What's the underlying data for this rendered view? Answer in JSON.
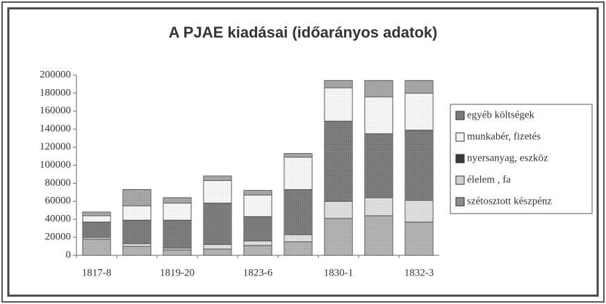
{
  "chart_data": {
    "type": "stacked_bar",
    "title": "A PJAE kiadásai (időarányos adatok)",
    "categories": [
      "1817-8",
      null,
      "1819-20",
      null,
      "1823-6",
      null,
      "1830-1",
      null,
      "1832-3"
    ],
    "series": [
      {
        "name": "szétosztott készpénz",
        "color": "#8c8c8c",
        "values": [
          18000,
          10000,
          6000,
          7000,
          11000,
          15000,
          41000,
          44000,
          37000
        ]
      },
      {
        "name": "élelem , fa",
        "color": "#cfcfcf",
        "values": [
          2000,
          3000,
          2000,
          5000,
          5000,
          8000,
          19000,
          20000,
          24000
        ]
      },
      {
        "name": "nyersanyag, eszköz",
        "color": "#3a3a3a",
        "values": [
          17000,
          26000,
          31000,
          46000,
          27000,
          50000,
          89000,
          71000,
          78000
        ]
      },
      {
        "name": "munkabér, fizetés",
        "color": "#f2f2f2",
        "values": [
          7000,
          16000,
          19000,
          25000,
          24000,
          36000,
          37000,
          41000,
          41000
        ]
      },
      {
        "name": "egyéb költségek",
        "color": "#7a7a7a",
        "values": [
          4000,
          18000,
          6000,
          5000,
          5000,
          4000,
          8000,
          18000,
          14000
        ]
      }
    ],
    "ylim": [
      0,
      200000
    ],
    "yticks": [
      0,
      20000,
      40000,
      60000,
      80000,
      100000,
      120000,
      140000,
      160000,
      180000,
      200000
    ],
    "legend": "right"
  }
}
